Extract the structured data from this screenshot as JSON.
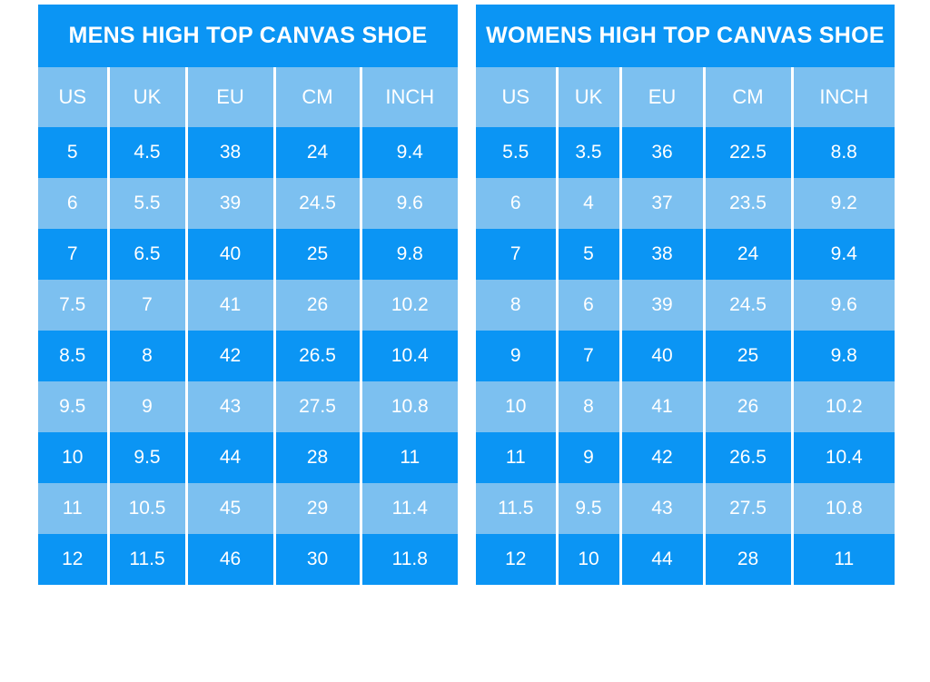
{
  "colors": {
    "dark_blue": "#0b95f4",
    "light_blue": "#7cc0f0",
    "text": "#ffffff",
    "background": "#ffffff",
    "divider": "#ffffff"
  },
  "chart_data": [
    {
      "type": "table",
      "title": "MENS HIGH TOP CANVAS SHOE",
      "columns": [
        "US",
        "UK",
        "EU",
        "CM",
        "INCH"
      ],
      "rows": [
        [
          "5",
          "4.5",
          "38",
          "24",
          "9.4"
        ],
        [
          "6",
          "5.5",
          "39",
          "24.5",
          "9.6"
        ],
        [
          "7",
          "6.5",
          "40",
          "25",
          "9.8"
        ],
        [
          "7.5",
          "7",
          "41",
          "26",
          "10.2"
        ],
        [
          "8.5",
          "8",
          "42",
          "26.5",
          "10.4"
        ],
        [
          "9.5",
          "9",
          "43",
          "27.5",
          "10.8"
        ],
        [
          "10",
          "9.5",
          "44",
          "28",
          "11"
        ],
        [
          "11",
          "10.5",
          "45",
          "29",
          "11.4"
        ],
        [
          "12",
          "11.5",
          "46",
          "30",
          "11.8"
        ]
      ],
      "layout": {
        "row_striping": "odd-dark-even-light",
        "first_data_row": "dark"
      }
    },
    {
      "type": "table",
      "title": "WOMENS HIGH TOP CANVAS SHOE",
      "columns": [
        "US",
        "UK",
        "EU",
        "CM",
        "INCH"
      ],
      "rows": [
        [
          "5.5",
          "3.5",
          "36",
          "22.5",
          "8.8"
        ],
        [
          "6",
          "4",
          "37",
          "23.5",
          "9.2"
        ],
        [
          "7",
          "5",
          "38",
          "24",
          "9.4"
        ],
        [
          "8",
          "6",
          "39",
          "24.5",
          "9.6"
        ],
        [
          "9",
          "7",
          "40",
          "25",
          "9.8"
        ],
        [
          "10",
          "8",
          "41",
          "26",
          "10.2"
        ],
        [
          "11",
          "9",
          "42",
          "26.5",
          "10.4"
        ],
        [
          "11.5",
          "9.5",
          "43",
          "27.5",
          "10.8"
        ],
        [
          "12",
          "10",
          "44",
          "28",
          "11"
        ]
      ],
      "layout": {
        "row_striping": "odd-dark-even-light",
        "first_data_row": "dark"
      }
    }
  ]
}
